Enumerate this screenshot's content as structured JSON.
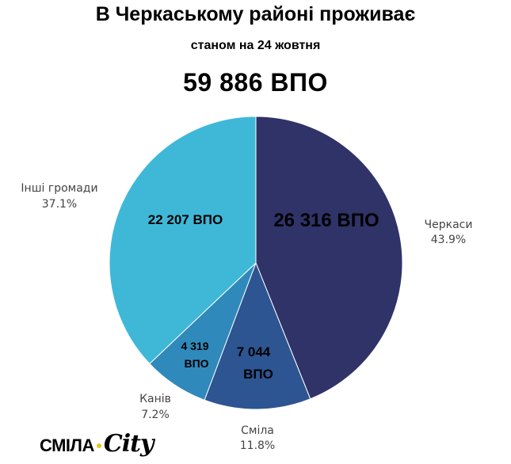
{
  "header": {
    "title": "В Черкаському районі проживає",
    "subtitle": "станом на 24 жовтня",
    "total": "59 886  ВПО"
  },
  "logo": {
    "brand": "СМІЛА",
    "city": "City"
  },
  "chart_data": {
    "type": "pie",
    "title": "В Черкаському районі проживає",
    "subtitle": "станом на 24 жовтня",
    "total": 59886,
    "slices": [
      {
        "name": "Черкаси",
        "value": 26316,
        "percent": 43.9,
        "pct_label": "43.9%",
        "value_label": "26 316  ВПО",
        "color": "#2f3368"
      },
      {
        "name": "Сміла",
        "value": 7044,
        "percent": 11.8,
        "pct_label": "11.8%",
        "value_label": "7 044 ВПО",
        "color": "#2d5591"
      },
      {
        "name": "Канів",
        "value": 4319,
        "percent": 7.2,
        "pct_label": "7.2%",
        "value_label": "4 319 ВПО",
        "color": "#3089bb"
      },
      {
        "name": "Інші громади",
        "value": 22207,
        "percent": 37.1,
        "pct_label": "37.1%",
        "value_label": "22 207  ВПО",
        "color": "#3fb8d8"
      }
    ]
  }
}
